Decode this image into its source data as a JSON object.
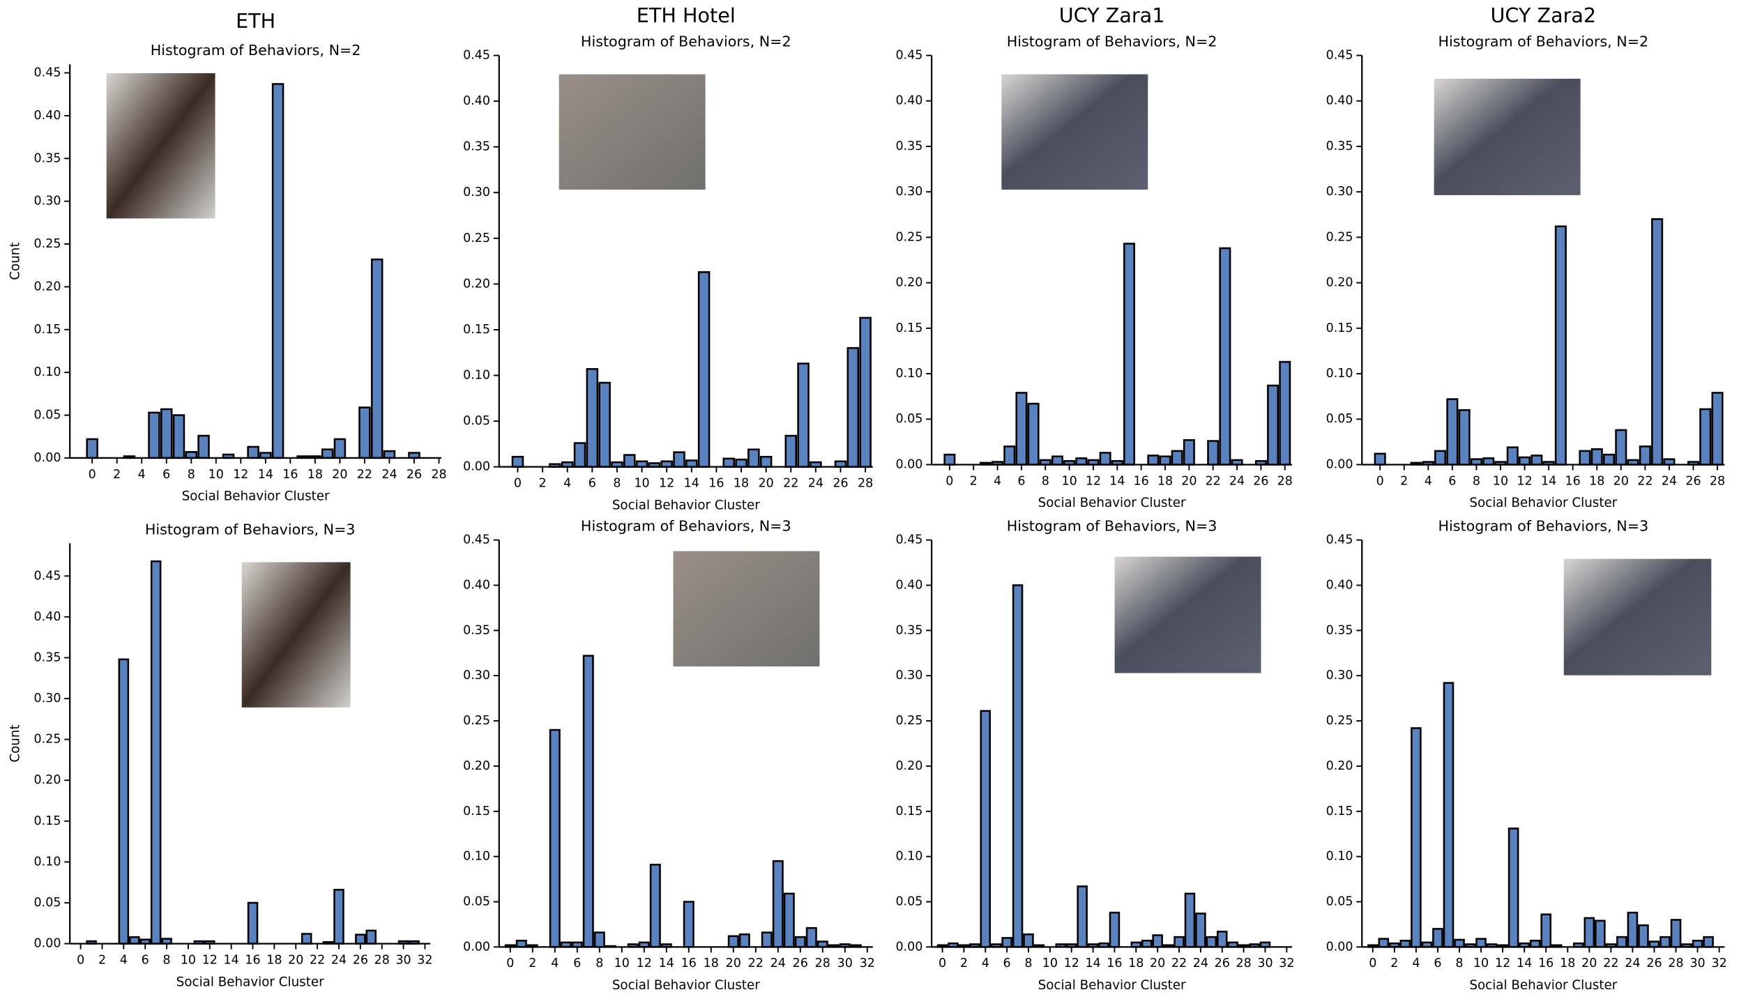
{
  "chart_data": [
    {
      "type": "bar",
      "suptitle": "ETH",
      "title": "Histogram of Behaviors, N=2",
      "xlabel": "Social Behavior Cluster",
      "ylabel": "Count",
      "color": "#5a82bf",
      "x": [
        0,
        1,
        2,
        3,
        4,
        5,
        6,
        7,
        8,
        9,
        10,
        11,
        12,
        13,
        14,
        15,
        16,
        17,
        18,
        19,
        20,
        21,
        22,
        23,
        24,
        25,
        26,
        27,
        28
      ],
      "values": [
        0.022,
        0,
        0,
        0.002,
        0,
        0.053,
        0.057,
        0.05,
        0.007,
        0.026,
        0,
        0.004,
        0,
        0.013,
        0.006,
        0.437,
        0,
        0.002,
        0.002,
        0.01,
        0.022,
        0,
        0.059,
        0.232,
        0.008,
        0,
        0.006,
        0,
        0
      ],
      "xlim": [
        -1.8,
        28.2
      ],
      "xticks": [
        0,
        2,
        4,
        6,
        8,
        10,
        12,
        14,
        16,
        18,
        20,
        22,
        24,
        26,
        28
      ],
      "ylim": [
        0,
        0.46
      ],
      "yticks": [
        0.0,
        0.05,
        0.1,
        0.15,
        0.2,
        0.25,
        0.3,
        0.35,
        0.4,
        0.45
      ]
    },
    {
      "type": "bar",
      "suptitle": "ETH Hotel",
      "title": "Histogram of Behaviors, N=2",
      "xlabel": "Social Behavior Cluster",
      "color": "#5a82bf",
      "x": [
        0,
        1,
        2,
        3,
        4,
        5,
        6,
        7,
        8,
        9,
        10,
        11,
        12,
        13,
        14,
        15,
        16,
        17,
        18,
        19,
        20,
        21,
        22,
        23,
        24,
        25,
        26,
        27,
        28
      ],
      "values": [
        0.011,
        0,
        0,
        0.003,
        0.005,
        0.026,
        0.107,
        0.092,
        0.005,
        0.013,
        0.006,
        0.004,
        0.006,
        0.016,
        0.007,
        0.213,
        0,
        0.009,
        0.008,
        0.019,
        0.011,
        0,
        0.034,
        0.113,
        0.005,
        0,
        0.006,
        0.13,
        0.163
      ],
      "xlim": [
        -1.5,
        28.6
      ],
      "xticks": [
        0,
        2,
        4,
        6,
        8,
        10,
        12,
        14,
        16,
        18,
        20,
        22,
        24,
        26,
        28
      ],
      "ylim": [
        0,
        0.45
      ],
      "yticks": [
        0.0,
        0.05,
        0.1,
        0.15,
        0.2,
        0.25,
        0.3,
        0.35,
        0.4,
        0.45
      ]
    },
    {
      "type": "bar",
      "suptitle": "UCY Zara1",
      "title": "Histogram of Behaviors, N=2",
      "xlabel": "Social Behavior Cluster",
      "color": "#5a82bf",
      "x": [
        0,
        1,
        2,
        3,
        4,
        5,
        6,
        7,
        8,
        9,
        10,
        11,
        12,
        13,
        14,
        15,
        16,
        17,
        18,
        19,
        20,
        21,
        22,
        23,
        24,
        25,
        26,
        27,
        28
      ],
      "values": [
        0.011,
        0,
        0,
        0.002,
        0.003,
        0.02,
        0.079,
        0.067,
        0.005,
        0.009,
        0.004,
        0.007,
        0.005,
        0.013,
        0.004,
        0.243,
        0,
        0.01,
        0.009,
        0.015,
        0.027,
        0,
        0.026,
        0.238,
        0.005,
        0,
        0.004,
        0.087,
        0.113
      ],
      "xlim": [
        -1.5,
        28.6
      ],
      "xticks": [
        0,
        2,
        4,
        6,
        8,
        10,
        12,
        14,
        16,
        18,
        20,
        22,
        24,
        26,
        28
      ],
      "ylim": [
        0,
        0.45
      ],
      "yticks": [
        0.0,
        0.05,
        0.1,
        0.15,
        0.2,
        0.25,
        0.3,
        0.35,
        0.4,
        0.45
      ]
    },
    {
      "type": "bar",
      "suptitle": "UCY Zara2",
      "title": "Histogram of Behaviors, N=2",
      "xlabel": "Social Behavior Cluster",
      "color": "#5a82bf",
      "x": [
        0,
        1,
        2,
        3,
        4,
        5,
        6,
        7,
        8,
        9,
        10,
        11,
        12,
        13,
        14,
        15,
        16,
        17,
        18,
        19,
        20,
        21,
        22,
        23,
        24,
        25,
        26,
        27,
        28
      ],
      "values": [
        0.012,
        0,
        0,
        0.002,
        0.003,
        0.015,
        0.072,
        0.06,
        0.006,
        0.007,
        0.003,
        0.019,
        0.008,
        0.01,
        0.003,
        0.262,
        0,
        0.015,
        0.017,
        0.011,
        0.038,
        0.005,
        0.02,
        0.27,
        0.006,
        0,
        0.003,
        0.061,
        0.079
      ],
      "xlim": [
        -1.5,
        28.6
      ],
      "xticks": [
        0,
        2,
        4,
        6,
        8,
        10,
        12,
        14,
        16,
        18,
        20,
        22,
        24,
        26,
        28
      ],
      "ylim": [
        0,
        0.45
      ],
      "yticks": [
        0.0,
        0.05,
        0.1,
        0.15,
        0.2,
        0.25,
        0.3,
        0.35,
        0.4,
        0.45
      ]
    },
    {
      "type": "bar",
      "title": "Histogram of Behaviors, N=3",
      "xlabel": "Social Behavior Cluster",
      "ylabel": "Count",
      "color": "#5a82bf",
      "x": [
        0,
        1,
        2,
        3,
        4,
        5,
        6,
        7,
        8,
        9,
        10,
        11,
        12,
        13,
        14,
        15,
        16,
        17,
        18,
        19,
        20,
        21,
        22,
        23,
        24,
        25,
        26,
        27,
        28,
        29,
        30,
        31,
        32
      ],
      "values": [
        0,
        0.003,
        0,
        0,
        0.348,
        0.008,
        0.005,
        0.468,
        0.006,
        0,
        0,
        0.003,
        0.003,
        0,
        0,
        0,
        0.05,
        0,
        0,
        0,
        0,
        0.012,
        0,
        0.002,
        0.066,
        0,
        0.011,
        0.016,
        0,
        0,
        0.003,
        0.003,
        0
      ],
      "xlim": [
        -1,
        32.5
      ],
      "xticks": [
        0,
        2,
        4,
        6,
        8,
        10,
        12,
        14,
        16,
        18,
        20,
        22,
        24,
        26,
        28,
        30,
        32
      ],
      "ylim": [
        0,
        0.49
      ],
      "yticks": [
        0.0,
        0.05,
        0.1,
        0.15,
        0.2,
        0.25,
        0.3,
        0.35,
        0.4,
        0.45
      ]
    },
    {
      "type": "bar",
      "title": "Histogram of Behaviors, N=3",
      "xlabel": "Social Behavior Cluster",
      "color": "#5a82bf",
      "x": [
        0,
        1,
        2,
        3,
        4,
        5,
        6,
        7,
        8,
        9,
        10,
        11,
        12,
        13,
        14,
        15,
        16,
        17,
        18,
        19,
        20,
        21,
        22,
        23,
        24,
        25,
        26,
        27,
        28,
        29,
        30,
        31,
        32
      ],
      "values": [
        0.002,
        0.007,
        0.002,
        0,
        0.24,
        0.005,
        0.005,
        0.322,
        0.016,
        0.001,
        0,
        0.003,
        0.005,
        0.091,
        0.003,
        0,
        0.05,
        0,
        0,
        0,
        0.012,
        0.014,
        0,
        0.016,
        0.095,
        0.059,
        0.011,
        0.021,
        0.006,
        0.002,
        0.003,
        0.002,
        0
      ],
      "xlim": [
        -1,
        32.5
      ],
      "xticks": [
        0,
        2,
        4,
        6,
        8,
        10,
        12,
        14,
        16,
        18,
        20,
        22,
        24,
        26,
        28,
        30,
        32
      ],
      "ylim": [
        0,
        0.45
      ],
      "yticks": [
        0.0,
        0.05,
        0.1,
        0.15,
        0.2,
        0.25,
        0.3,
        0.35,
        0.4,
        0.45
      ]
    },
    {
      "type": "bar",
      "title": "Histogram of Behaviors, N=3",
      "xlabel": "Social Behavior Cluster",
      "color": "#5a82bf",
      "x": [
        0,
        1,
        2,
        3,
        4,
        5,
        6,
        7,
        8,
        9,
        10,
        11,
        12,
        13,
        14,
        15,
        16,
        17,
        18,
        19,
        20,
        21,
        22,
        23,
        24,
        25,
        26,
        27,
        28,
        29,
        30,
        31,
        32
      ],
      "values": [
        0.002,
        0.004,
        0.002,
        0.003,
        0.261,
        0.003,
        0.01,
        0.4,
        0.014,
        0.002,
        0,
        0.003,
        0.003,
        0.067,
        0.003,
        0.004,
        0.038,
        0,
        0.005,
        0.007,
        0.013,
        0.002,
        0.011,
        0.059,
        0.037,
        0.011,
        0.017,
        0.005,
        0.002,
        0.003,
        0.005,
        0,
        0
      ],
      "xlim": [
        -1,
        32.5
      ],
      "xticks": [
        0,
        2,
        4,
        6,
        8,
        10,
        12,
        14,
        16,
        18,
        20,
        22,
        24,
        26,
        28,
        30,
        32
      ],
      "ylim": [
        0,
        0.45
      ],
      "yticks": [
        0.0,
        0.05,
        0.1,
        0.15,
        0.2,
        0.25,
        0.3,
        0.35,
        0.4,
        0.45
      ]
    },
    {
      "type": "bar",
      "title": "Histogram of Behaviors, N=3",
      "xlabel": "Social Behavior Cluster",
      "color": "#5a82bf",
      "x": [
        0,
        1,
        2,
        3,
        4,
        5,
        6,
        7,
        8,
        9,
        10,
        11,
        12,
        13,
        14,
        15,
        16,
        17,
        18,
        19,
        20,
        21,
        22,
        23,
        24,
        25,
        26,
        27,
        28,
        29,
        30,
        31,
        32
      ],
      "values": [
        0.002,
        0.009,
        0.004,
        0.007,
        0.242,
        0.005,
        0.02,
        0.292,
        0.008,
        0.003,
        0.009,
        0.003,
        0.002,
        0.131,
        0.004,
        0.007,
        0.036,
        0.002,
        0,
        0.004,
        0.032,
        0.029,
        0.003,
        0.011,
        0.038,
        0.024,
        0.006,
        0.011,
        0.03,
        0.003,
        0.007,
        0.011,
        0
      ],
      "xlim": [
        -1,
        32.5
      ],
      "xticks": [
        0,
        2,
        4,
        6,
        8,
        10,
        12,
        14,
        16,
        18,
        20,
        22,
        24,
        26,
        28,
        30,
        32
      ],
      "ylim": [
        0,
        0.45
      ],
      "yticks": [
        0.0,
        0.05,
        0.1,
        0.15,
        0.2,
        0.25,
        0.3,
        0.35,
        0.4,
        0.45
      ]
    }
  ]
}
